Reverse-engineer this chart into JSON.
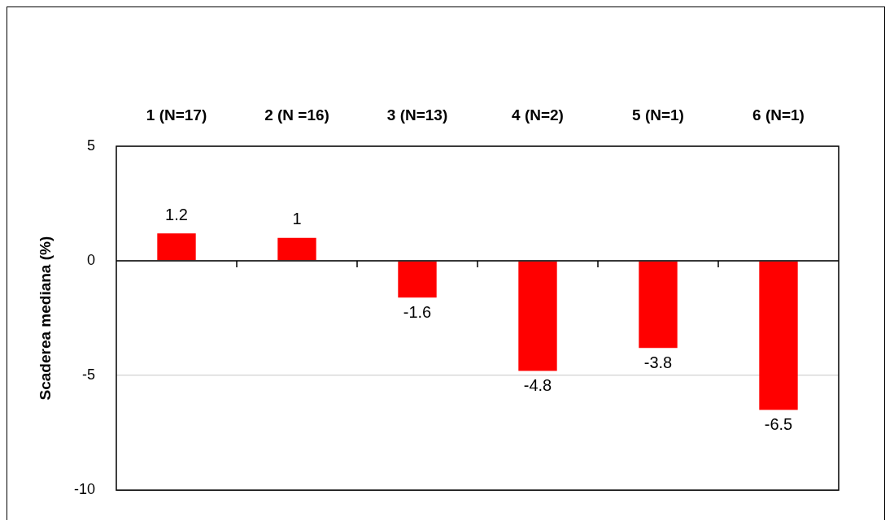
{
  "chart_data": {
    "type": "bar",
    "categories": [
      "1 (N=17)",
      "2 (N =16)",
      "3 (N=13)",
      "4 (N=2)",
      "5 (N=1)",
      "6 (N=1)"
    ],
    "values": [
      1.2,
      1,
      -1.6,
      -4.8,
      -3.8,
      -6.5
    ],
    "color": "#ff0000",
    "ylabel": "Scaderea mediana (%)",
    "ylim": [
      -10,
      5
    ],
    "yticks": [
      -10,
      -5,
      0,
      5
    ],
    "grid": "y",
    "data_labels": true
  }
}
